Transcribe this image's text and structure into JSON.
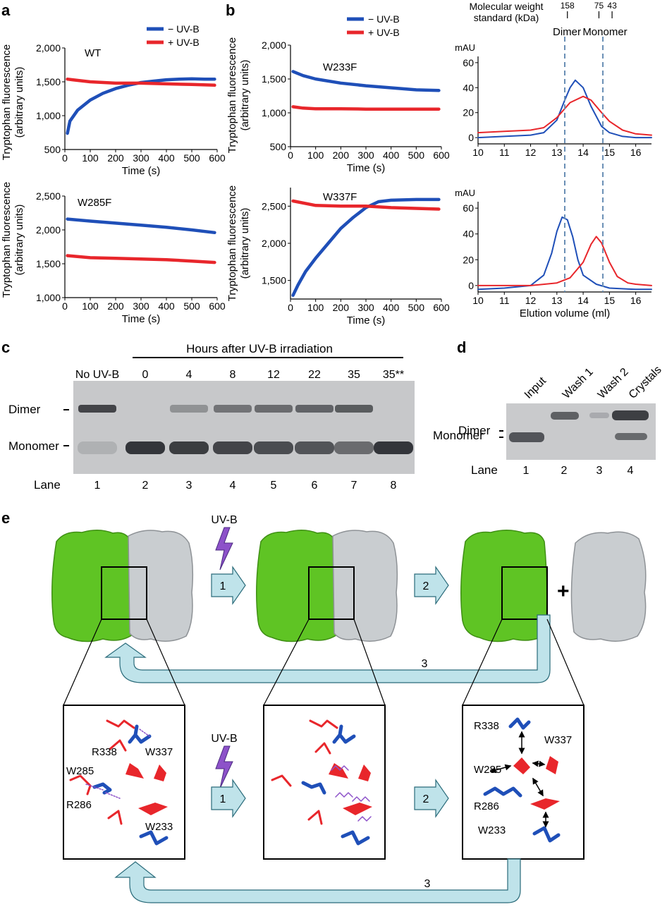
{
  "panels": {
    "a": "a",
    "b": "b",
    "c": "c",
    "d": "d",
    "e1": "e",
    "e2": "e"
  },
  "colors": {
    "minus_uvb": "#1f4fb8",
    "plus_uvb": "#e8262b",
    "green": "#5fc424",
    "grey": "#c9cdd0",
    "arrow": "#bfe3ea",
    "bolt": "#8d52c9"
  },
  "legend": {
    "minus": "− UV-B",
    "plus": "+ UV-B"
  },
  "fluor_ylabel_1": "Tryptophan fluorescence",
  "fluor_ylabel_2": "(arbitrary units)",
  "time_xlabel": "Time (s)",
  "chart_data": [
    {
      "id": "WT",
      "type": "line",
      "title": "WT",
      "xlabel": "Time (s)",
      "ylabel": "Tryptophan fluorescence (arbitrary units)",
      "xlim": [
        0,
        600
      ],
      "ylim": [
        500,
        2000
      ],
      "xticks": [
        "0",
        "100",
        "200",
        "300",
        "400",
        "500",
        "600"
      ],
      "yticks": [
        "500",
        "1,000",
        "1,500",
        "2,000"
      ],
      "series": [
        {
          "name": "− UV-B",
          "x": [
            10,
            20,
            50,
            100,
            150,
            200,
            250,
            300,
            350,
            400,
            450,
            500,
            550,
            590
          ],
          "y": [
            740,
            920,
            1080,
            1230,
            1330,
            1400,
            1450,
            1490,
            1510,
            1530,
            1540,
            1545,
            1540,
            1540
          ]
        },
        {
          "name": "+ UV-B",
          "x": [
            10,
            30,
            100,
            200,
            300,
            400,
            500,
            590
          ],
          "y": [
            1540,
            1530,
            1500,
            1480,
            1480,
            1470,
            1460,
            1450
          ]
        }
      ]
    },
    {
      "id": "W285F",
      "type": "line",
      "title": "W285F",
      "xlabel": "Time (s)",
      "ylabel": "Tryptophan fluorescence (arbitrary units)",
      "xlim": [
        0,
        600
      ],
      "ylim": [
        1000,
        2500
      ],
      "xticks": [
        "0",
        "100",
        "200",
        "300",
        "400",
        "500",
        "600"
      ],
      "yticks": [
        "1,000",
        "1,500",
        "2,000",
        "2,500"
      ],
      "series": [
        {
          "name": "− UV-B",
          "x": [
            10,
            100,
            200,
            300,
            400,
            500,
            590
          ],
          "y": [
            2160,
            2130,
            2100,
            2070,
            2040,
            2000,
            1960
          ]
        },
        {
          "name": "+ UV-B",
          "x": [
            10,
            100,
            200,
            300,
            400,
            500,
            590
          ],
          "y": [
            1620,
            1590,
            1580,
            1570,
            1560,
            1540,
            1520
          ]
        }
      ]
    },
    {
      "id": "W233F",
      "type": "line",
      "title": "W233F",
      "xlabel": "Time (s)",
      "ylabel": "Tryptophan fluorescence (arbitrary units)",
      "xlim": [
        0,
        600
      ],
      "ylim": [
        500,
        2000
      ],
      "xticks": [
        "0",
        "100",
        "200",
        "300",
        "400",
        "500",
        "600"
      ],
      "yticks": [
        "500",
        "1,000",
        "1,500",
        "2,000"
      ],
      "series": [
        {
          "name": "− UV-B",
          "x": [
            10,
            50,
            100,
            200,
            300,
            400,
            500,
            590
          ],
          "y": [
            1610,
            1550,
            1500,
            1440,
            1400,
            1370,
            1340,
            1330
          ]
        },
        {
          "name": "+ UV-B",
          "x": [
            10,
            50,
            100,
            200,
            300,
            400,
            500,
            590
          ],
          "y": [
            1090,
            1070,
            1060,
            1060,
            1055,
            1055,
            1055,
            1055
          ]
        }
      ]
    },
    {
      "id": "W337F",
      "type": "line",
      "title": "W337F",
      "xlabel": "Time (s)",
      "ylabel": "Tryptophan fluorescence (arbitrary units)",
      "xlim": [
        0,
        600
      ],
      "ylim": [
        1250,
        2750
      ],
      "xticks": [
        "0",
        "100",
        "200",
        "300",
        "400",
        "500",
        "600"
      ],
      "yticks": [
        "1,500",
        "2,000",
        "2,500"
      ],
      "series": [
        {
          "name": "− UV-B",
          "x": [
            10,
            30,
            60,
            100,
            150,
            200,
            250,
            300,
            350,
            400,
            500,
            590
          ],
          "y": [
            1300,
            1440,
            1620,
            1800,
            2000,
            2200,
            2350,
            2480,
            2560,
            2580,
            2590,
            2590
          ]
        },
        {
          "name": "+ UV-B",
          "x": [
            10,
            100,
            200,
            300,
            400,
            500,
            590
          ],
          "y": [
            2570,
            2510,
            2500,
            2500,
            2480,
            2470,
            2460
          ]
        }
      ]
    },
    {
      "id": "SEC_W233F",
      "type": "line",
      "xlabel": "Elution volume (ml)",
      "ylabel": "mAU",
      "xlim": [
        10,
        16.6
      ],
      "ylim": [
        -5,
        65
      ],
      "xticks": [
        "10",
        "11",
        "12",
        "13",
        "14",
        "15",
        "16"
      ],
      "yticks": [
        "0",
        "20",
        "40",
        "60"
      ],
      "series": [
        {
          "name": "− UV-B",
          "x": [
            10,
            11,
            12,
            12.5,
            13,
            13.3,
            13.5,
            13.7,
            14,
            14.3,
            14.7,
            15,
            15.5,
            16,
            16.6
          ],
          "y": [
            0,
            1,
            2,
            4,
            14,
            30,
            40,
            46,
            40,
            25,
            9,
            4,
            1,
            0,
            0
          ]
        },
        {
          "name": "+ UV-B",
          "x": [
            10,
            11,
            12,
            12.5,
            13,
            13.5,
            14,
            14.3,
            14.7,
            15,
            15.5,
            16,
            16.6
          ],
          "y": [
            4,
            5,
            6,
            8,
            16,
            28,
            33,
            30,
            20,
            13,
            6,
            3,
            2
          ]
        }
      ]
    },
    {
      "id": "SEC_W285F",
      "type": "line",
      "xlabel": "Elution volume (ml)",
      "ylabel": "mAU",
      "xlim": [
        10,
        16.6
      ],
      "ylim": [
        -5,
        65
      ],
      "xticks": [
        "10",
        "11",
        "12",
        "13",
        "14",
        "15",
        "16"
      ],
      "yticks": [
        "0",
        "20",
        "40",
        "60"
      ],
      "series": [
        {
          "name": "− UV-B",
          "x": [
            10,
            11,
            12,
            12.5,
            12.8,
            13,
            13.2,
            13.4,
            13.6,
            13.8,
            14,
            14.5,
            15,
            16,
            16.6
          ],
          "y": [
            -3,
            -2,
            0,
            8,
            25,
            42,
            53,
            51,
            38,
            20,
            8,
            1,
            -2,
            -3,
            -3
          ]
        },
        {
          "name": "+ UV-B",
          "x": [
            10,
            11,
            12,
            13,
            13.5,
            14,
            14.3,
            14.5,
            14.7,
            15,
            15.3,
            15.7,
            16,
            16.6
          ],
          "y": [
            0,
            0,
            0,
            2,
            6,
            18,
            32,
            38,
            33,
            18,
            7,
            2,
            1,
            0
          ]
        }
      ]
    }
  ],
  "sec": {
    "mw_title_1": "Molecular weight",
    "mw_title_2": "standard (kDa)",
    "mw_marks": [
      {
        "label": "158",
        "v": 13.4
      },
      {
        "label": "75",
        "v": 14.6
      },
      {
        "label": "43",
        "v": 15.1
      }
    ],
    "dimer_label": "Dimer",
    "monomer_label": "Monomer",
    "dimer_v": 13.3,
    "monomer_v": 14.75,
    "xlabel": "Elution volume (ml)",
    "unit": "mAU"
  },
  "gel_c": {
    "header": "Hours after UV-B irradiation",
    "lane_titles": [
      "No UV-B",
      "0",
      "4",
      "8",
      "12",
      "22",
      "35",
      "35**"
    ],
    "lane_label": "Lane",
    "lane_numbers": [
      "1",
      "2",
      "3",
      "4",
      "5",
      "6",
      "7",
      "8"
    ],
    "row_dimer": "Dimer",
    "row_monomer": "Monomer",
    "dimer_intensity": [
      0.85,
      0,
      0.35,
      0.55,
      0.6,
      0.65,
      0.7,
      0
    ],
    "monomer_intensity": [
      0.15,
      0.95,
      0.9,
      0.85,
      0.8,
      0.75,
      0.6,
      0.95
    ]
  },
  "gel_d": {
    "lane_titles": [
      "Input",
      "Wash 1",
      "Wash 2",
      "Crystals"
    ],
    "lane_label": "Lane",
    "lane_numbers": [
      "1",
      "2",
      "3",
      "4"
    ],
    "row_dimer": "Dimer",
    "row_monomer": "Monomer"
  },
  "scheme": {
    "uvb": "UV-B",
    "step1": "1",
    "step2": "2",
    "step3": "3",
    "plus": "+",
    "residues_left": [
      "R338",
      "W337",
      "W285",
      "R286",
      "W233"
    ],
    "residues_right": [
      "R338",
      "W337",
      "W285",
      "R286",
      "W233"
    ]
  }
}
